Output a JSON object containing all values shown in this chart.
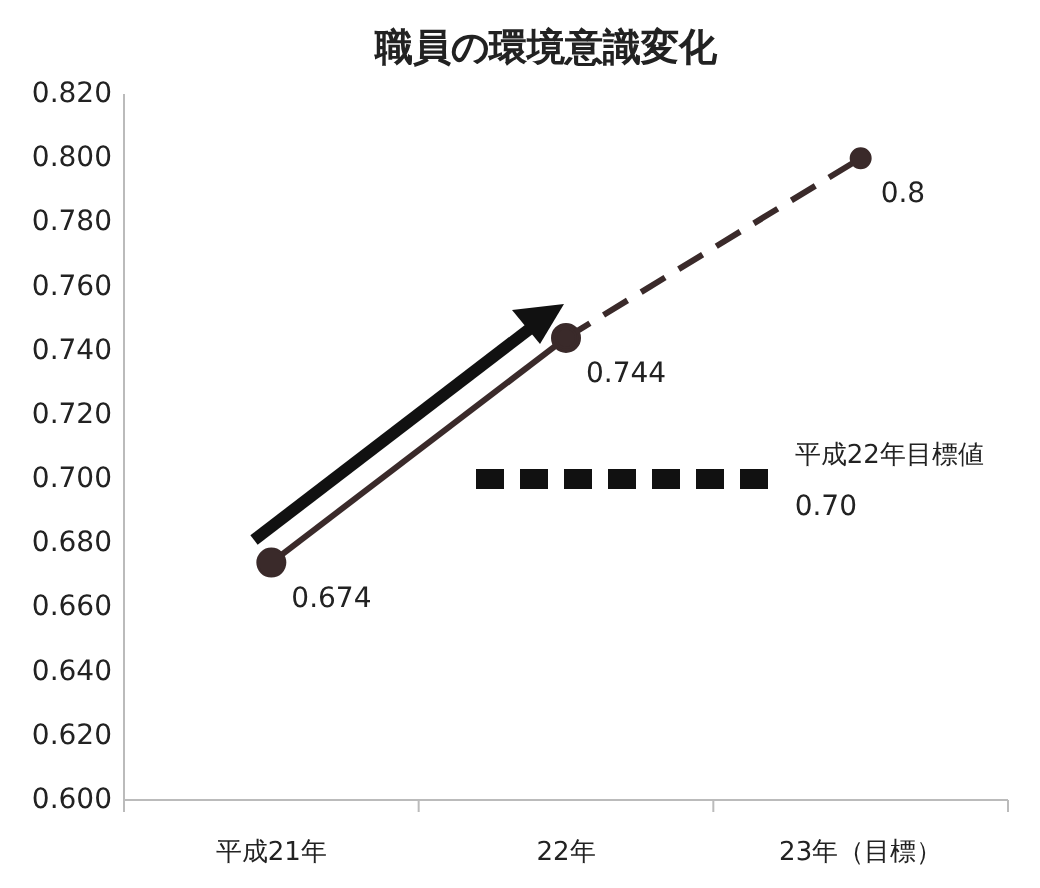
{
  "chart_data": {
    "type": "line",
    "title": "職員の環境意識変化",
    "categories": [
      "平成21年",
      "22年",
      "23年（目標）"
    ],
    "ylim": [
      0.6,
      0.82
    ],
    "yticks": [
      {
        "value": 0.6,
        "label": "0.600"
      },
      {
        "value": 0.62,
        "label": "0.620"
      },
      {
        "value": 0.64,
        "label": "0.640"
      },
      {
        "value": 0.66,
        "label": "0.660"
      },
      {
        "value": 0.68,
        "label": "0.680"
      },
      {
        "value": 0.7,
        "label": "0.700"
      },
      {
        "value": 0.72,
        "label": "0.720"
      },
      {
        "value": 0.74,
        "label": "0.740"
      },
      {
        "value": 0.76,
        "label": "0.760"
      },
      {
        "value": 0.78,
        "label": "0.780"
      },
      {
        "value": 0.8,
        "label": "0.800"
      },
      {
        "value": 0.82,
        "label": "0.820"
      }
    ],
    "grid": false,
    "marker": "circle",
    "series": [
      {
        "color": "#3a2a2a",
        "values": [
          0.674,
          0.744,
          null
        ],
        "value_labels": [
          "0.674",
          "0.744",
          null
        ],
        "line_style": "solid"
      },
      {
        "color": "#3a2a2a",
        "values": [
          null,
          0.744,
          0.8
        ],
        "value_labels": [
          null,
          null,
          "0.8"
        ],
        "line_style": "dashed"
      }
    ],
    "ref_lines": [
      {
        "axis": "y",
        "value": 0.7,
        "label": "平成22年目標値",
        "color": "#111111",
        "line_style": "dashed"
      }
    ],
    "annotations": [
      "0.70"
    ]
  }
}
